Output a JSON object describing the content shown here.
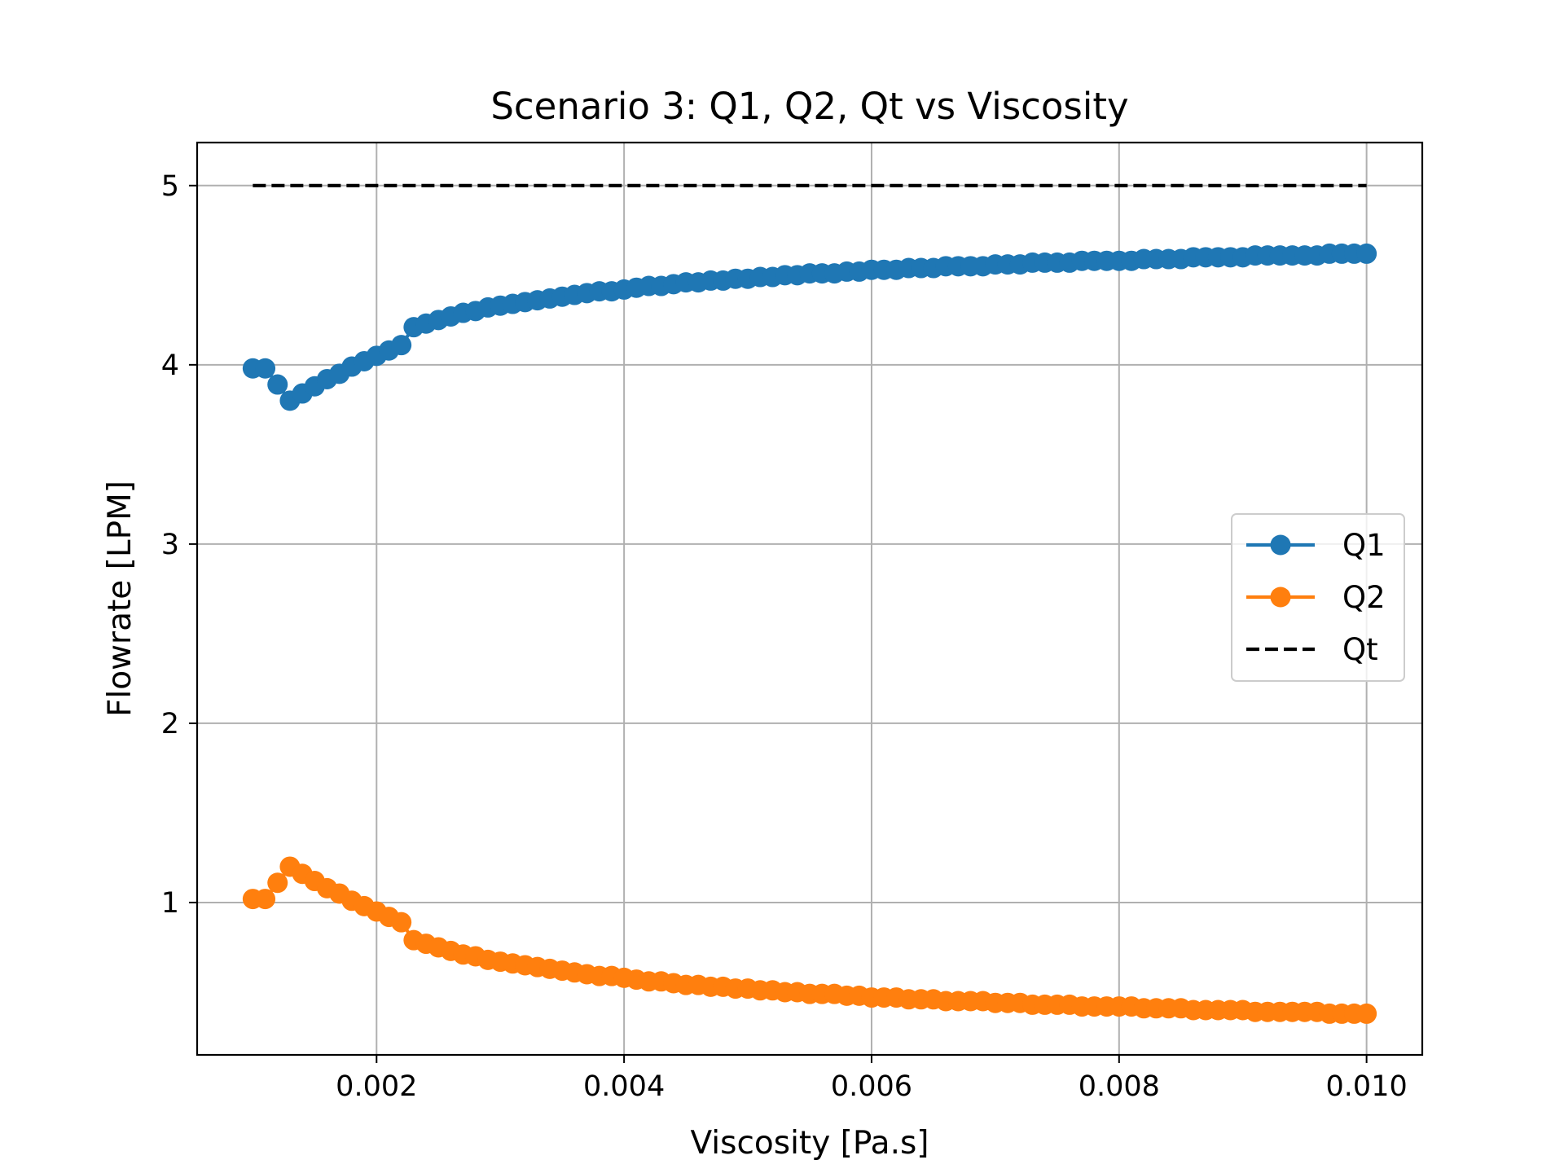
{
  "chart_data": {
    "type": "line",
    "title": "Scenario 3: Q1, Q2, Qt vs Viscosity",
    "xlabel": "Viscosity [Pa.s]",
    "ylabel": "Flowrate [LPM]",
    "xlim": [
      0.00055,
      0.01045
    ],
    "ylim": [
      0.15,
      5.24
    ],
    "xticks": [
      0.002,
      0.004,
      0.006,
      0.008,
      0.01
    ],
    "xtick_labels": [
      "0.002",
      "0.004",
      "0.006",
      "0.008",
      "0.010"
    ],
    "yticks": [
      1,
      2,
      3,
      4,
      5
    ],
    "ytick_labels": [
      "1",
      "2",
      "3",
      "4",
      "5"
    ],
    "grid": true,
    "legend_position": "center-right",
    "x": [
      0.001,
      0.0011,
      0.0012,
      0.0013,
      0.0014,
      0.0015,
      0.0016,
      0.0017,
      0.0018,
      0.0019,
      0.002,
      0.0021,
      0.0022,
      0.0023,
      0.0024,
      0.0025,
      0.0026,
      0.0027,
      0.0028,
      0.0029,
      0.003,
      0.0031,
      0.0032,
      0.0033,
      0.0034,
      0.0035,
      0.0036,
      0.0037,
      0.0038,
      0.0039,
      0.004,
      0.0041,
      0.0042,
      0.0043,
      0.0044,
      0.0045,
      0.0046,
      0.0047,
      0.0048,
      0.0049,
      0.005,
      0.0051,
      0.0052,
      0.0053,
      0.0054,
      0.0055,
      0.0056,
      0.0057,
      0.0058,
      0.0059,
      0.006,
      0.0061,
      0.0062,
      0.0063,
      0.0064,
      0.0065,
      0.0066,
      0.0067,
      0.0068,
      0.0069,
      0.007,
      0.0071,
      0.0072,
      0.0073,
      0.0074,
      0.0075,
      0.0076,
      0.0077,
      0.0078,
      0.0079,
      0.008,
      0.0081,
      0.0082,
      0.0083,
      0.0084,
      0.0085,
      0.0086,
      0.0087,
      0.0088,
      0.0089,
      0.009,
      0.0091,
      0.0092,
      0.0093,
      0.0094,
      0.0095,
      0.0096,
      0.0097,
      0.0098,
      0.0099,
      0.01
    ],
    "series": [
      {
        "name": "Q1",
        "color": "#1f77b4",
        "style": "solid-with-circle-markers",
        "values": [
          3.98,
          3.98,
          3.89,
          3.8,
          3.84,
          3.88,
          3.92,
          3.95,
          3.99,
          4.02,
          4.05,
          4.08,
          4.11,
          4.21,
          4.23,
          4.25,
          4.27,
          4.29,
          4.3,
          4.32,
          4.33,
          4.34,
          4.35,
          4.36,
          4.37,
          4.38,
          4.39,
          4.4,
          4.41,
          4.41,
          4.42,
          4.43,
          4.44,
          4.44,
          4.45,
          4.46,
          4.46,
          4.47,
          4.47,
          4.48,
          4.48,
          4.49,
          4.49,
          4.5,
          4.5,
          4.51,
          4.51,
          4.51,
          4.52,
          4.52,
          4.53,
          4.53,
          4.53,
          4.54,
          4.54,
          4.54,
          4.55,
          4.55,
          4.55,
          4.55,
          4.56,
          4.56,
          4.56,
          4.57,
          4.57,
          4.57,
          4.57,
          4.58,
          4.58,
          4.58,
          4.58,
          4.58,
          4.59,
          4.59,
          4.59,
          4.59,
          4.6,
          4.6,
          4.6,
          4.6,
          4.6,
          4.61,
          4.61,
          4.61,
          4.61,
          4.61,
          4.61,
          4.62,
          4.62,
          4.62,
          4.62
        ]
      },
      {
        "name": "Q2",
        "color": "#ff7f0e",
        "style": "solid-with-circle-markers",
        "values": [
          1.02,
          1.02,
          1.11,
          1.2,
          1.16,
          1.12,
          1.08,
          1.05,
          1.01,
          0.98,
          0.95,
          0.92,
          0.89,
          0.79,
          0.77,
          0.75,
          0.73,
          0.71,
          0.7,
          0.68,
          0.67,
          0.66,
          0.65,
          0.64,
          0.63,
          0.62,
          0.61,
          0.6,
          0.59,
          0.59,
          0.58,
          0.57,
          0.56,
          0.56,
          0.55,
          0.54,
          0.54,
          0.53,
          0.53,
          0.52,
          0.52,
          0.51,
          0.51,
          0.5,
          0.5,
          0.49,
          0.49,
          0.49,
          0.48,
          0.48,
          0.47,
          0.47,
          0.47,
          0.46,
          0.46,
          0.46,
          0.45,
          0.45,
          0.45,
          0.45,
          0.44,
          0.44,
          0.44,
          0.43,
          0.43,
          0.43,
          0.43,
          0.42,
          0.42,
          0.42,
          0.42,
          0.42,
          0.41,
          0.41,
          0.41,
          0.41,
          0.4,
          0.4,
          0.4,
          0.4,
          0.4,
          0.39,
          0.39,
          0.39,
          0.39,
          0.39,
          0.39,
          0.38,
          0.38,
          0.38,
          0.38
        ]
      },
      {
        "name": "Qt",
        "color": "#000000",
        "style": "dashed",
        "values": [
          5,
          5,
          5,
          5,
          5,
          5,
          5,
          5,
          5,
          5,
          5,
          5,
          5,
          5,
          5,
          5,
          5,
          5,
          5,
          5,
          5,
          5,
          5,
          5,
          5,
          5,
          5,
          5,
          5,
          5,
          5,
          5,
          5,
          5,
          5,
          5,
          5,
          5,
          5,
          5,
          5,
          5,
          5,
          5,
          5,
          5,
          5,
          5,
          5,
          5,
          5,
          5,
          5,
          5,
          5,
          5,
          5,
          5,
          5,
          5,
          5,
          5,
          5,
          5,
          5,
          5,
          5,
          5,
          5,
          5,
          5,
          5,
          5,
          5,
          5,
          5,
          5,
          5,
          5,
          5,
          5,
          5,
          5,
          5,
          5,
          5,
          5,
          5,
          5,
          5,
          5
        ]
      }
    ]
  }
}
